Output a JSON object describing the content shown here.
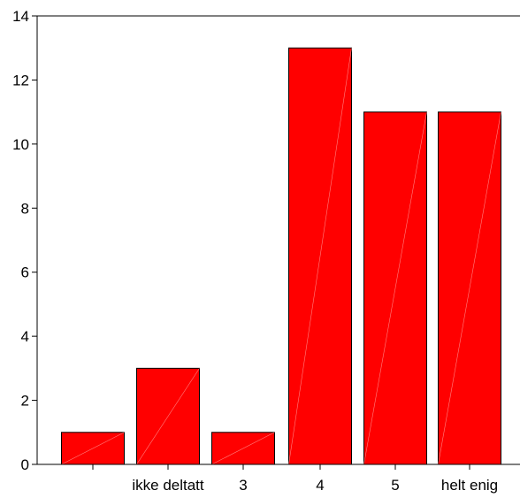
{
  "chart_data": {
    "type": "bar",
    "categories": [
      "",
      "ikke deltatt",
      "3",
      "4",
      "5",
      "helt enig"
    ],
    "values": [
      1,
      3,
      1,
      13,
      11,
      11
    ],
    "ylim": [
      0,
      14
    ],
    "yticks": [
      0,
      2,
      4,
      6,
      8,
      10,
      12,
      14
    ],
    "grid": false,
    "bar_color": "#ff0000",
    "bar_outline": "#000000",
    "title": "",
    "xlabel": "",
    "ylabel": ""
  }
}
